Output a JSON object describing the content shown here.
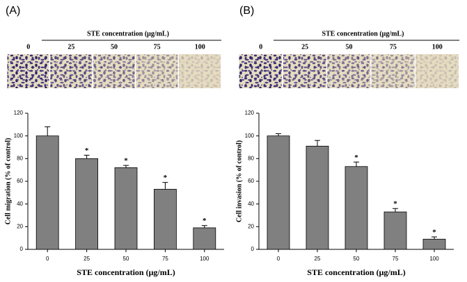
{
  "chart_data": [
    {
      "type": "bar",
      "panel_label": "(A)",
      "image_header": "STE concentration (μg/mL)",
      "image_labels": [
        "0",
        "25",
        "50",
        "75",
        "100"
      ],
      "categories": [
        "0",
        "25",
        "50",
        "75",
        "100"
      ],
      "values": [
        100,
        80,
        72,
        53,
        19
      ],
      "errors": [
        8,
        3,
        2,
        6,
        2
      ],
      "markers": [
        null,
        "*",
        "*",
        "*",
        "*"
      ],
      "xlabel": "STE concentration (μg/mL)",
      "ylabel": "Cell migration (% of control)",
      "ylim": [
        0,
        120
      ],
      "yticks": [
        0,
        20,
        40,
        60,
        80,
        100,
        120
      ],
      "color": "#808080"
    },
    {
      "type": "bar",
      "panel_label": "(B)",
      "image_header": "STE concentration (μg/mL)",
      "image_labels": [
        "0",
        "25",
        "50",
        "75",
        "100"
      ],
      "categories": [
        "0",
        "25",
        "50",
        "75",
        "100"
      ],
      "values": [
        100,
        91,
        73,
        33,
        9
      ],
      "errors": [
        2,
        5,
        4,
        3,
        2
      ],
      "markers": [
        null,
        null,
        "*",
        "*",
        "*"
      ],
      "xlabel": "STE concentration (μg/mL)",
      "ylabel": "Cell invasion (% of control)",
      "ylim": [
        0,
        120
      ],
      "yticks": [
        0,
        20,
        40,
        60,
        80,
        100,
        120
      ],
      "color": "#808080"
    }
  ]
}
